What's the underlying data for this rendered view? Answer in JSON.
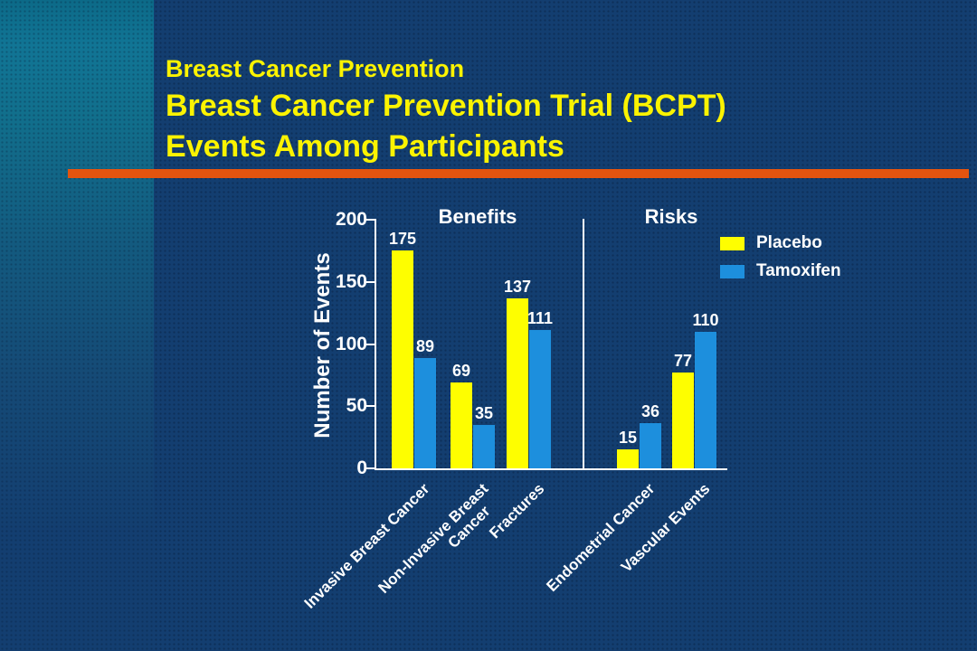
{
  "slide": {
    "title_line1": "Breast Cancer Prevention",
    "title_line2": "Breast Cancer Prevention Trial (BCPT)",
    "title_line3": "Events Among Participants"
  },
  "colors": {
    "background": "#133e70",
    "left_panel": "#0f7090",
    "accent_rule": "#e4540f",
    "title_text": "#fbf300",
    "axis_text": "#ffffff",
    "placebo_bar": "#fefe00",
    "tamoxifen_bar": "#1d8fdd"
  },
  "chart_data": {
    "type": "bar",
    "title": "",
    "xlabel": "",
    "ylabel": "Number of Events",
    "ylim": [
      0,
      200
    ],
    "yticks": [
      0,
      50,
      100,
      150,
      200
    ],
    "grid": false,
    "legend_position": "upper right",
    "value_labels": true,
    "sections": [
      {
        "label": "Benefits",
        "category_indexes": [
          0,
          1,
          2
        ]
      },
      {
        "label": "Risks",
        "category_indexes": [
          3,
          4
        ]
      }
    ],
    "categories": [
      "Invasive Breast Cancer",
      "Non-Invasive Breast Cancer",
      "Fractures",
      "Endometrial Cancer",
      "Vascular Events"
    ],
    "categories_display": [
      [
        "Invasive Breast Cancer"
      ],
      [
        "Non-Invasive Breast",
        "Cancer"
      ],
      [
        "Fractures"
      ],
      [
        "Endometrial Cancer"
      ],
      [
        "Vascular Events"
      ]
    ],
    "series": [
      {
        "name": "Placebo",
        "color": "#fefe00",
        "values": [
          175,
          69,
          137,
          15,
          77
        ]
      },
      {
        "name": "Tamoxifen",
        "color": "#1d8fdd",
        "values": [
          89,
          35,
          111,
          36,
          110
        ]
      }
    ]
  }
}
